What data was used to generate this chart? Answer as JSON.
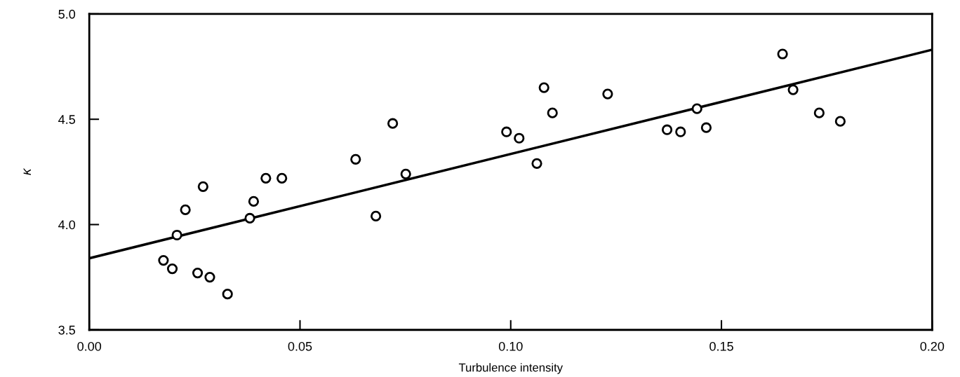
{
  "chart_data": {
    "type": "scatter",
    "xlabel": "Turbulence intensity",
    "ylabel": "κ",
    "xlim": [
      0.0,
      0.2
    ],
    "xticks": [
      {
        "value": 0.0,
        "label": "0.00"
      },
      {
        "value": 0.05,
        "label": "0.05"
      },
      {
        "value": 0.1,
        "label": "0.10"
      },
      {
        "value": 0.15,
        "label": "0.15"
      },
      {
        "value": 0.2,
        "label": "0.20"
      }
    ],
    "ylim": [
      3.5,
      5.0
    ],
    "yticks": [
      {
        "value": 3.5,
        "label": "3.5"
      },
      {
        "value": 4.0,
        "label": "4.0"
      },
      {
        "value": 4.5,
        "label": "4.5"
      },
      {
        "value": 5.0,
        "label": "5.0"
      }
    ],
    "grid": false,
    "series": [
      {
        "type": "line",
        "color": "#000000",
        "marker": "none",
        "line_style": "solid",
        "x": [
          0.0,
          0.2
        ],
        "values": [
          3.84,
          4.83
        ]
      },
      {
        "color": "#000000",
        "marker": "circle",
        "x": [
          0.0176,
          0.0197,
          0.0208,
          0.0228,
          0.0257,
          0.027,
          0.0286,
          0.0328,
          0.0381,
          0.039,
          0.0419,
          0.0457,
          0.0632,
          0.068,
          0.072,
          0.0751,
          0.099,
          0.102,
          0.1062,
          0.1079,
          0.1099,
          0.123,
          0.1371,
          0.1403,
          0.1442,
          0.1464,
          0.1645,
          0.167,
          0.1732,
          0.1782
        ],
        "values": [
          3.83,
          3.79,
          3.95,
          4.07,
          3.77,
          4.18,
          3.75,
          3.67,
          4.03,
          4.11,
          4.22,
          4.22,
          4.31,
          4.04,
          4.48,
          4.24,
          4.44,
          4.41,
          4.29,
          4.65,
          4.53,
          4.62,
          4.45,
          4.44,
          4.55,
          4.46,
          4.81,
          4.64,
          4.53,
          4.49
        ]
      }
    ]
  }
}
